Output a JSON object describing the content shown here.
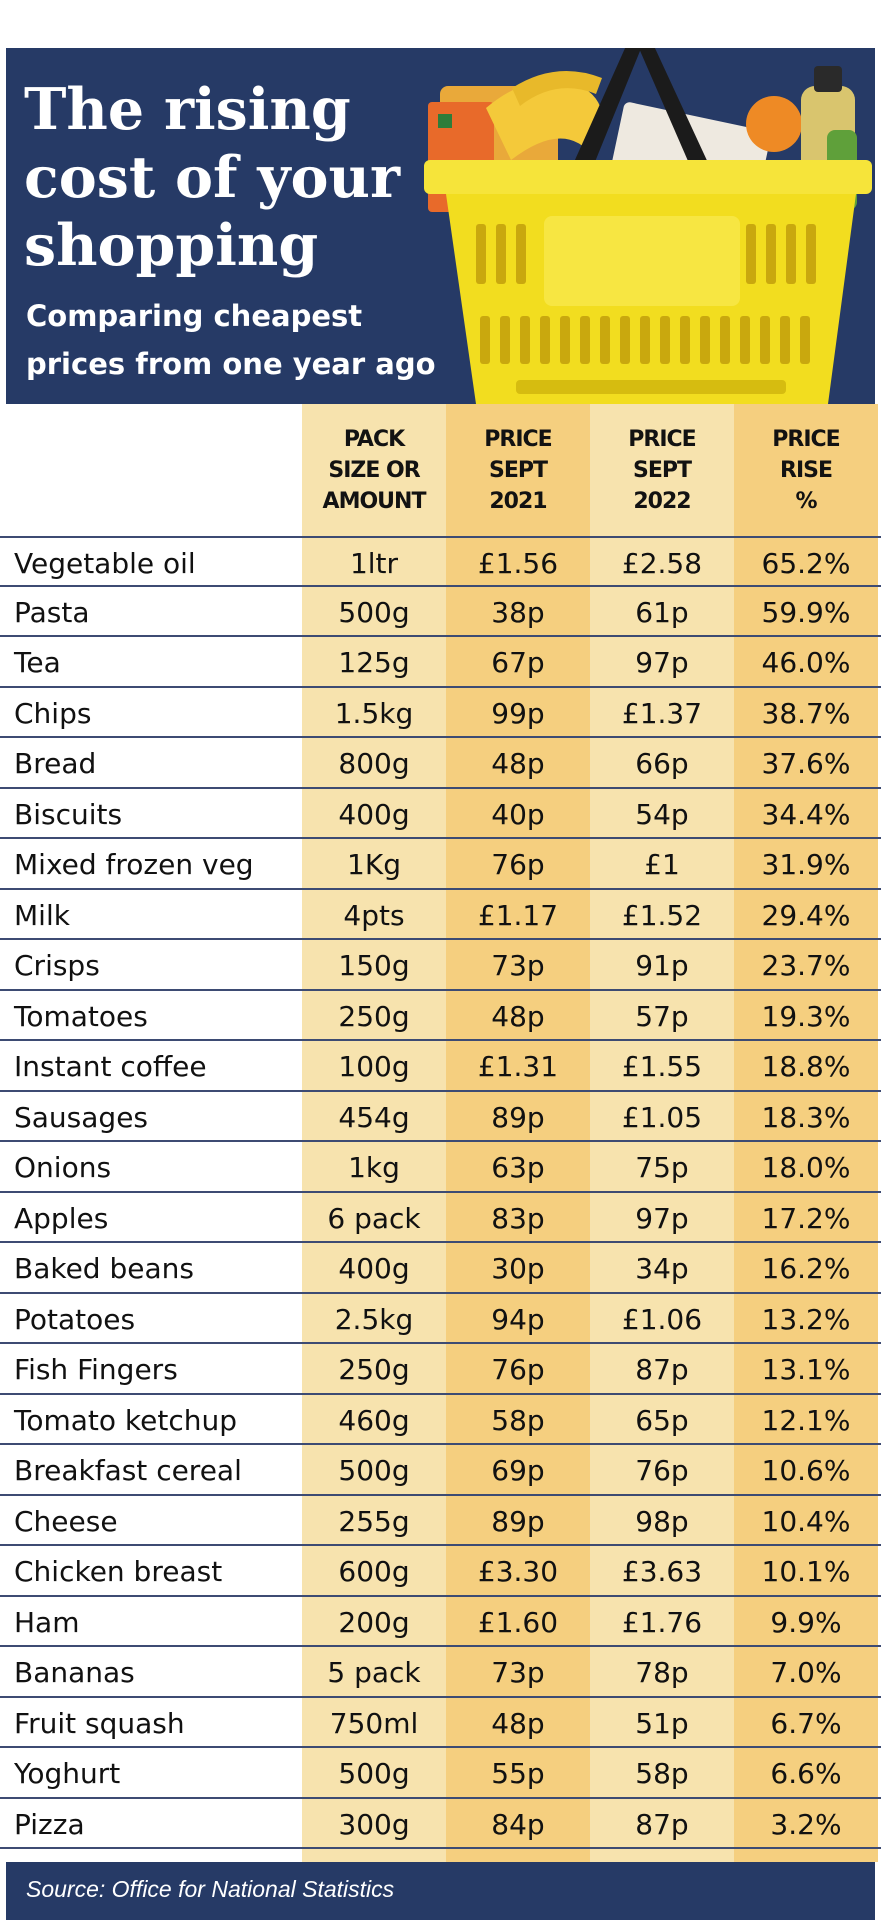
{
  "title": "The rising cost of your shopping",
  "subtitle": "Comparing cheapest prices from one year ago",
  "source": "Source: Office for National Statistics",
  "colors": {
    "header_bg": "#263a66",
    "col_pack": "#f7e3ae",
    "col_2021": "#f5cf7f",
    "col_2022": "#f7e3ae",
    "col_rise": "#f5cf7f",
    "row_rule": "#3d4b73",
    "basket_yellow": "#f2dd1f"
  },
  "chart_data": {
    "type": "table",
    "columns": [
      "",
      "PACK\nSIZE OR\nAMOUNT",
      "PRICE\nSEPT\n2021",
      "PRICE\nSEPT\n2022",
      "PRICE\nRISE\n%"
    ],
    "rows": [
      {
        "item": "Vegetable oil",
        "pack": "1ltr",
        "price_2021": "£1.56",
        "price_2022": "£2.58",
        "rise": "65.2%"
      },
      {
        "item": "Pasta",
        "pack": "500g",
        "price_2021": "38p",
        "price_2022": "61p",
        "rise": "59.9%"
      },
      {
        "item": "Tea",
        "pack": "125g",
        "price_2021": "67p",
        "price_2022": "97p",
        "rise": "46.0%"
      },
      {
        "item": "Chips",
        "pack": "1.5kg",
        "price_2021": "99p",
        "price_2022": "£1.37",
        "rise": "38.7%"
      },
      {
        "item": "Bread",
        "pack": "800g",
        "price_2021": "48p",
        "price_2022": "66p",
        "rise": "37.6%"
      },
      {
        "item": "Biscuits",
        "pack": "400g",
        "price_2021": "40p",
        "price_2022": "54p",
        "rise": "34.4%"
      },
      {
        "item": "Mixed frozen veg",
        "pack": "1Kg",
        "price_2021": "76p",
        "price_2022": "£1",
        "rise": "31.9%"
      },
      {
        "item": "Milk",
        "pack": "4pts",
        "price_2021": "£1.17",
        "price_2022": "£1.52",
        "rise": "29.4%"
      },
      {
        "item": "Crisps",
        "pack": "150g",
        "price_2021": "73p",
        "price_2022": "91p",
        "rise": "23.7%"
      },
      {
        "item": "Tomatoes",
        "pack": "250g",
        "price_2021": "48p",
        "price_2022": "57p",
        "rise": "19.3%"
      },
      {
        "item": "Instant coffee",
        "pack": "100g",
        "price_2021": "£1.31",
        "price_2022": "£1.55",
        "rise": "18.8%"
      },
      {
        "item": "Sausages",
        "pack": "454g",
        "price_2021": "89p",
        "price_2022": "£1.05",
        "rise": "18.3%"
      },
      {
        "item": "Onions",
        "pack": "1kg",
        "price_2021": "63p",
        "price_2022": "75p",
        "rise": "18.0%"
      },
      {
        "item": "Apples",
        "pack": "6 pack",
        "price_2021": "83p",
        "price_2022": "97p",
        "rise": "17.2%"
      },
      {
        "item": "Baked beans",
        "pack": "400g",
        "price_2021": "30p",
        "price_2022": "34p",
        "rise": "16.2%"
      },
      {
        "item": "Potatoes",
        "pack": "2.5kg",
        "price_2021": "94p",
        "price_2022": "£1.06",
        "rise": "13.2%"
      },
      {
        "item": "Fish Fingers",
        "pack": "250g",
        "price_2021": "76p",
        "price_2022": "87p",
        "rise": "13.1%"
      },
      {
        "item": "Tomato ketchup",
        "pack": "460g",
        "price_2021": "58p",
        "price_2022": "65p",
        "rise": "12.1%"
      },
      {
        "item": "Breakfast cereal",
        "pack": "500g",
        "price_2021": "69p",
        "price_2022": "76p",
        "rise": "10.6%"
      },
      {
        "item": "Cheese",
        "pack": "255g",
        "price_2021": "89p",
        "price_2022": "98p",
        "rise": "10.4%"
      },
      {
        "item": "Chicken breast",
        "pack": "600g",
        "price_2021": "£3.30",
        "price_2022": "£3.63",
        "rise": "10.1%"
      },
      {
        "item": "Ham",
        "pack": "200g",
        "price_2021": "£1.60",
        "price_2022": "£1.76",
        "rise": "9.9%"
      },
      {
        "item": "Bananas",
        "pack": "5 pack",
        "price_2021": "73p",
        "price_2022": "78p",
        "rise": "7.0%"
      },
      {
        "item": "Fruit squash",
        "pack": "750ml",
        "price_2021": "48p",
        "price_2022": "51p",
        "rise": "6.7%"
      },
      {
        "item": "Yoghurt",
        "pack": "500g",
        "price_2021": "55p",
        "price_2022": "58p",
        "rise": "6.6%"
      },
      {
        "item": "Pizza",
        "pack": "300g",
        "price_2021": "84p",
        "price_2022": "87p",
        "rise": "3.2%"
      }
    ]
  }
}
